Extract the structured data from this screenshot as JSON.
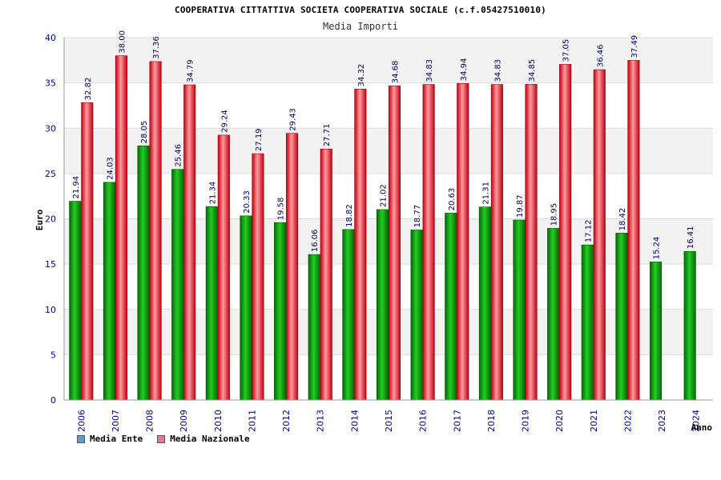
{
  "chart_data": {
    "type": "bar",
    "title": "COOPERATIVA CITTATTIVA SOCIETA COOPERATIVA SOCIALE (c.f.05427510010)",
    "subtitle": "Media Importi",
    "ylabel": "Euro",
    "xlabel": "Anno",
    "ylim": [
      0,
      40
    ],
    "yticks": [
      0,
      5,
      10,
      15,
      20,
      25,
      30,
      35,
      40
    ],
    "categories": [
      "2006",
      "2007",
      "2008",
      "2009",
      "2010",
      "2011",
      "2012",
      "2013",
      "2014",
      "2015",
      "2016",
      "2017",
      "2018",
      "2019",
      "2020",
      "2021",
      "2022",
      "2023",
      "2024"
    ],
    "series": [
      {
        "name": "Media Ente",
        "color": "#0a9a0a",
        "values": [
          21.94,
          24.03,
          28.05,
          25.46,
          21.34,
          20.33,
          19.58,
          16.06,
          18.82,
          21.02,
          18.77,
          20.63,
          21.31,
          19.87,
          18.95,
          17.12,
          18.42,
          15.24,
          16.41
        ],
        "labels": [
          "21.94",
          "24.03",
          "28.05",
          "25.46",
          "21.34",
          "20.33",
          "19.58",
          "16.06",
          "18.82",
          "21.02",
          "18.77",
          "20.63",
          "21.31",
          "19.87",
          "18.95",
          "17.12",
          "18.42",
          "15.24",
          "16.41"
        ]
      },
      {
        "name": "Media Nazionale",
        "color": "#e0141e",
        "values": [
          32.82,
          38.0,
          37.36,
          34.79,
          29.24,
          27.19,
          29.43,
          27.71,
          34.32,
          34.68,
          34.83,
          34.94,
          34.83,
          34.85,
          37.05,
          36.46,
          37.49,
          null,
          null
        ],
        "labels": [
          "32.82",
          "38.00",
          "37.36",
          "34.79",
          "29.24",
          "27.19",
          "29.43",
          "27.71",
          "34.32",
          "34.68",
          "34.83",
          "34.94",
          "34.83",
          "34.85",
          "37.05",
          "36.46",
          "37.49",
          null,
          null
        ]
      }
    ],
    "legend": [
      {
        "label": "Media Ente",
        "color": "#5b9bd5"
      },
      {
        "label": "Media Nazionale",
        "color": "#e07aa0"
      }
    ],
    "grid": true
  }
}
